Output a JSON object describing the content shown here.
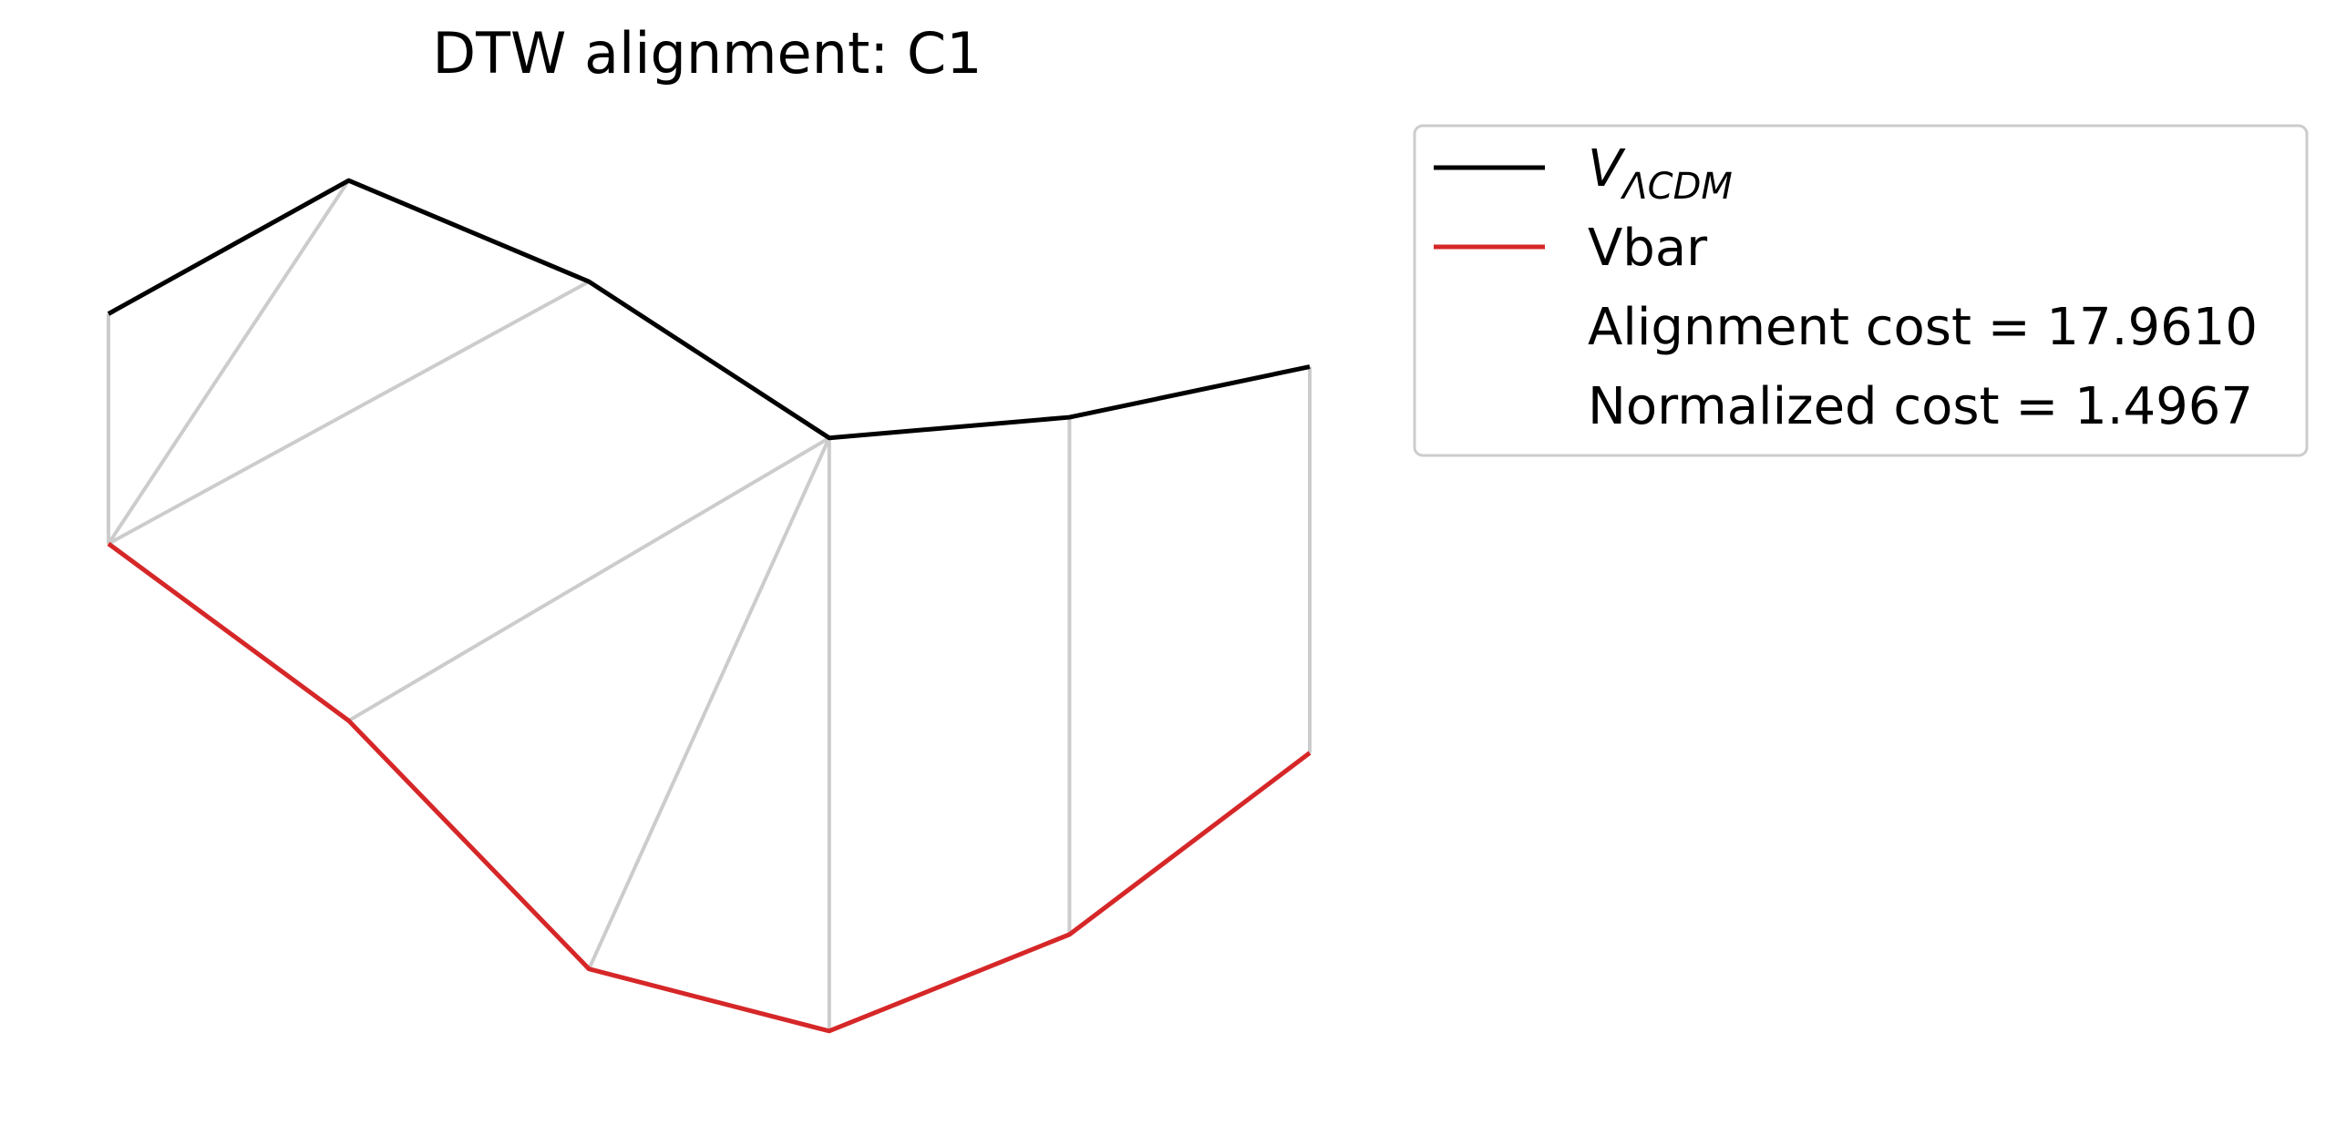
{
  "chart_data": {
    "type": "line",
    "title": "DTW alignment: C1",
    "xlabel": "",
    "ylabel": "",
    "axes_visible": false,
    "grid": false,
    "legend_placement": "top-right outside",
    "series": [
      {
        "name_main": "V",
        "name_sub": "ΛCDM",
        "name": "V_ΛCDM",
        "color": "#000000",
        "x": [
          0,
          1,
          2,
          3,
          4,
          5
        ],
        "y": [
          4.7,
          5.28,
          4.84,
          4.16,
          4.25,
          4.47
        ]
      },
      {
        "name": "Vbar",
        "color": "#d62728",
        "x": [
          0,
          1,
          2,
          3,
          4,
          5
        ],
        "y": [
          3.7,
          2.93,
          1.85,
          1.58,
          2.0,
          2.79
        ]
      }
    ],
    "alignment_pairs": [
      [
        0,
        0
      ],
      [
        1,
        0
      ],
      [
        2,
        0
      ],
      [
        3,
        1
      ],
      [
        3,
        2
      ],
      [
        3,
        3
      ],
      [
        4,
        4
      ],
      [
        5,
        5
      ]
    ],
    "alignment_color": "#cccccc",
    "annotations": [
      "Alignment cost = 17.9610",
      "Normalized cost = 1.4967"
    ],
    "xlim": [
      -0.22,
      5.22
    ],
    "ylim": [
      1.31,
      5.55
    ]
  }
}
